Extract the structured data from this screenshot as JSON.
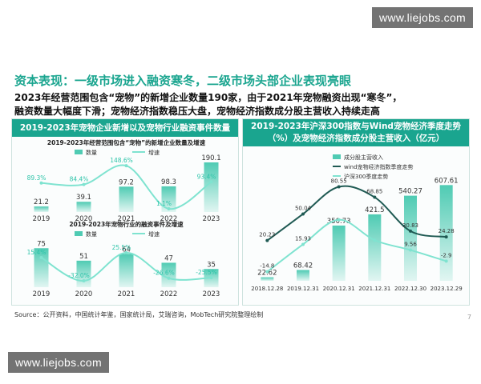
{
  "watermark": "www.liejobs.com",
  "slide": {
    "title": "资本表现：一级市场进入融资寒冬，二级市场头部企业表现亮眼",
    "subtitle_line1": "2023年经营范围包含“宠物”的新增企业数量190家，由于2021年宠物融资出现“寒冬”，",
    "subtitle_line2": "融资数量大幅度下滑；宠物经济指数稳压大盘，宠物经济指数成分股主营收入持续走高",
    "source": "Source：公开资料，中国统计年鉴，国家统计局，艾瑞咨询，MobTech研究院整理绘制",
    "page_number": "7"
  },
  "left_panel": {
    "title": "2019-2023年宠物企业新增以及宠物行业融资事件数量"
  },
  "right_panel": {
    "title": "2019-2023年沪深300指数与Wind宠物经济季度走势（%）及宠物经济指数成分股主营收入（亿元）"
  },
  "colors": {
    "accent": "#1aa58f",
    "bar": "#4fcbb3",
    "line_light": "#7fe3d0",
    "line_dark": "#1f5a53"
  },
  "chart_data": [
    {
      "type": "bar",
      "title": "2019-2023年经营范围包含“宠物”的新增企业数量及增速",
      "categories": [
        "2019",
        "2020",
        "2021",
        "2022",
        "2023"
      ],
      "series": [
        {
          "name": "数量",
          "kind": "bar",
          "values": [
            21.2,
            39.1,
            97.2,
            98.3,
            190.1
          ],
          "labels": [
            "21.2",
            "39.1",
            "97.2",
            "98.3",
            "190.1"
          ]
        },
        {
          "name": "增速",
          "kind": "line",
          "values": [
            89.3,
            84.4,
            148.6,
            1.1,
            93.4
          ],
          "labels": [
            "89.3%",
            "84.4%",
            "148.6%",
            "1.1%",
            "93.4%"
          ]
        }
      ],
      "legend": "top"
    },
    {
      "type": "bar",
      "title": "2019-2023年宠物行业的融资事件及增速",
      "categories": [
        "2019",
        "2020",
        "2021",
        "2022",
        "2023"
      ],
      "series": [
        {
          "name": "数量",
          "kind": "bar",
          "values": [
            75,
            51,
            64,
            47,
            35
          ],
          "labels": [
            "75",
            "51",
            "64",
            "47",
            "35"
          ]
        },
        {
          "name": "增速",
          "kind": "line",
          "values": [
            15.4,
            -32.0,
            25.5,
            -26.6,
            -25.5
          ],
          "labels": [
            "15.4%",
            "-32.0%",
            "25.5%",
            "-26.6%",
            "-25.5%"
          ]
        }
      ],
      "legend": "top"
    },
    {
      "type": "bar",
      "categories": [
        "2018.12.28",
        "2019.12.31",
        "2020.12.31",
        "2021.12.31",
        "2022.12.30",
        "2023.12.29"
      ],
      "series": [
        {
          "name": "成分股主营收入",
          "kind": "bar",
          "values": [
            22.62,
            68.42,
            350.73,
            421.5,
            540.27,
            607.61
          ],
          "labels": [
            "22.62",
            "68.42",
            "350.73",
            "421.5",
            "540.27",
            "607.61"
          ]
        },
        {
          "name": "wind宠物经济指数季度走势",
          "kind": "line",
          "values": [
            20.23,
            50.04,
            80.55,
            68.85,
            30.83,
            24.28
          ],
          "labels": [
            "20.23",
            "50.04",
            "80.55",
            "68.85",
            "30.83",
            "24.28"
          ]
        },
        {
          "name": "沪深300季度走势",
          "kind": "line",
          "values": [
            -14.8,
            15.93,
            43.54,
            20.6,
            9.56,
            -2.9
          ],
          "labels": [
            "-14.8",
            "15.93",
            "",
            "",
            "9.56",
            "-2.9"
          ]
        }
      ],
      "legend": "top-left"
    }
  ]
}
